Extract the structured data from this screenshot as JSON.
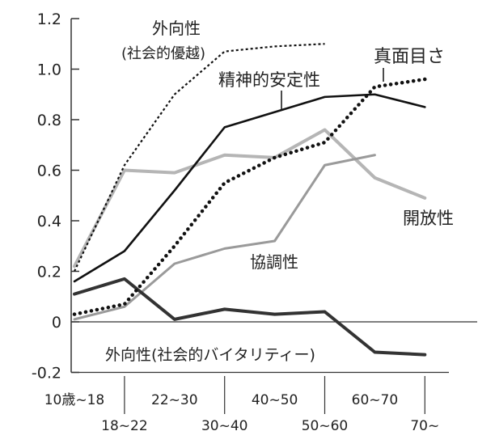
{
  "chart_data": {
    "type": "line",
    "title": "",
    "xlabel": "",
    "ylabel": "",
    "categories": [
      "10歳~18",
      "18~22",
      "22~30",
      "30~40",
      "40~50",
      "50~60",
      "60~70",
      "70~"
    ],
    "ylim": [
      -0.2,
      1.2
    ],
    "yticks": [
      "1.2",
      "1.0",
      "0.8",
      "0.6",
      "0.4",
      "0.2",
      "0",
      "-0.2"
    ],
    "ytick_values": [
      1.2,
      1.0,
      0.8,
      0.6,
      0.4,
      0.2,
      0,
      -0.2
    ],
    "grid": false,
    "legend": "none (direct labels on lines)",
    "series": [
      {
        "name": "外向性(社会的優越)",
        "label_lines": [
          "外向性",
          "(社会的優越)"
        ],
        "style": "thin-dotted",
        "color": "#111111",
        "values": [
          0.2,
          0.62,
          0.9,
          1.07,
          1.09,
          1.1,
          null,
          null
        ]
      },
      {
        "name": "精神的安定性",
        "style": "solid",
        "color": "#111111",
        "values": [
          0.16,
          0.28,
          0.52,
          0.77,
          0.83,
          0.89,
          0.9,
          0.85
        ]
      },
      {
        "name": "真面目さ",
        "style": "heavy-dotted",
        "color": "#111111",
        "values": [
          0.03,
          0.07,
          0.3,
          0.55,
          0.65,
          0.71,
          0.93,
          0.96
        ]
      },
      {
        "name": "開放性",
        "style": "light-gray",
        "color": "#b5b5b5",
        "values": [
          0.22,
          0.6,
          0.59,
          0.66,
          0.65,
          0.76,
          0.57,
          0.49
        ]
      },
      {
        "name": "協調性",
        "style": "gray",
        "color": "#9a9a9a",
        "values": [
          0.01,
          0.06,
          0.23,
          0.29,
          0.32,
          0.62,
          0.66,
          null
        ]
      },
      {
        "name": "外向性(社会的バイタリティー)",
        "style": "dark-thick",
        "color": "#333333",
        "values": [
          0.11,
          0.17,
          0.01,
          0.05,
          0.03,
          0.04,
          -0.12,
          -0.13
        ]
      }
    ]
  }
}
